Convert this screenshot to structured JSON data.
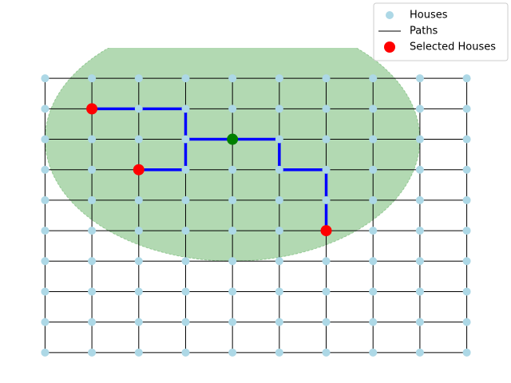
{
  "chart_data": {
    "type": "scatter",
    "xlim": [
      -0.45,
      9.45
    ],
    "ylim": [
      10,
      -1
    ],
    "legend": "upper right",
    "houses": {
      "name": "Houses",
      "color": "#add8e6",
      "x": [
        0,
        1,
        2,
        3,
        4,
        5,
        6,
        7,
        8,
        9
      ],
      "y": [
        0,
        1,
        2,
        3,
        4,
        5,
        6,
        7,
        8,
        9
      ]
    },
    "paths": {
      "name": "Paths",
      "color": "#000000"
    },
    "route": {
      "color": "#0000ff",
      "x": [
        1,
        3,
        3,
        2,
        null,
        3,
        5,
        5,
        6,
        6
      ],
      "y": [
        1,
        1,
        3,
        3,
        null,
        2,
        2,
        3,
        3,
        5
      ]
    },
    "selected": {
      "name": "Selected Houses",
      "color": "#ff0000",
      "x": [
        1,
        2,
        6
      ],
      "y": [
        1,
        3,
        5
      ]
    },
    "center": {
      "color": "#008000",
      "x": 4,
      "y": 2
    },
    "region": {
      "color": "#008000",
      "opacity": 0.3,
      "cx": 4,
      "cy": 2,
      "radius": 4
    }
  }
}
